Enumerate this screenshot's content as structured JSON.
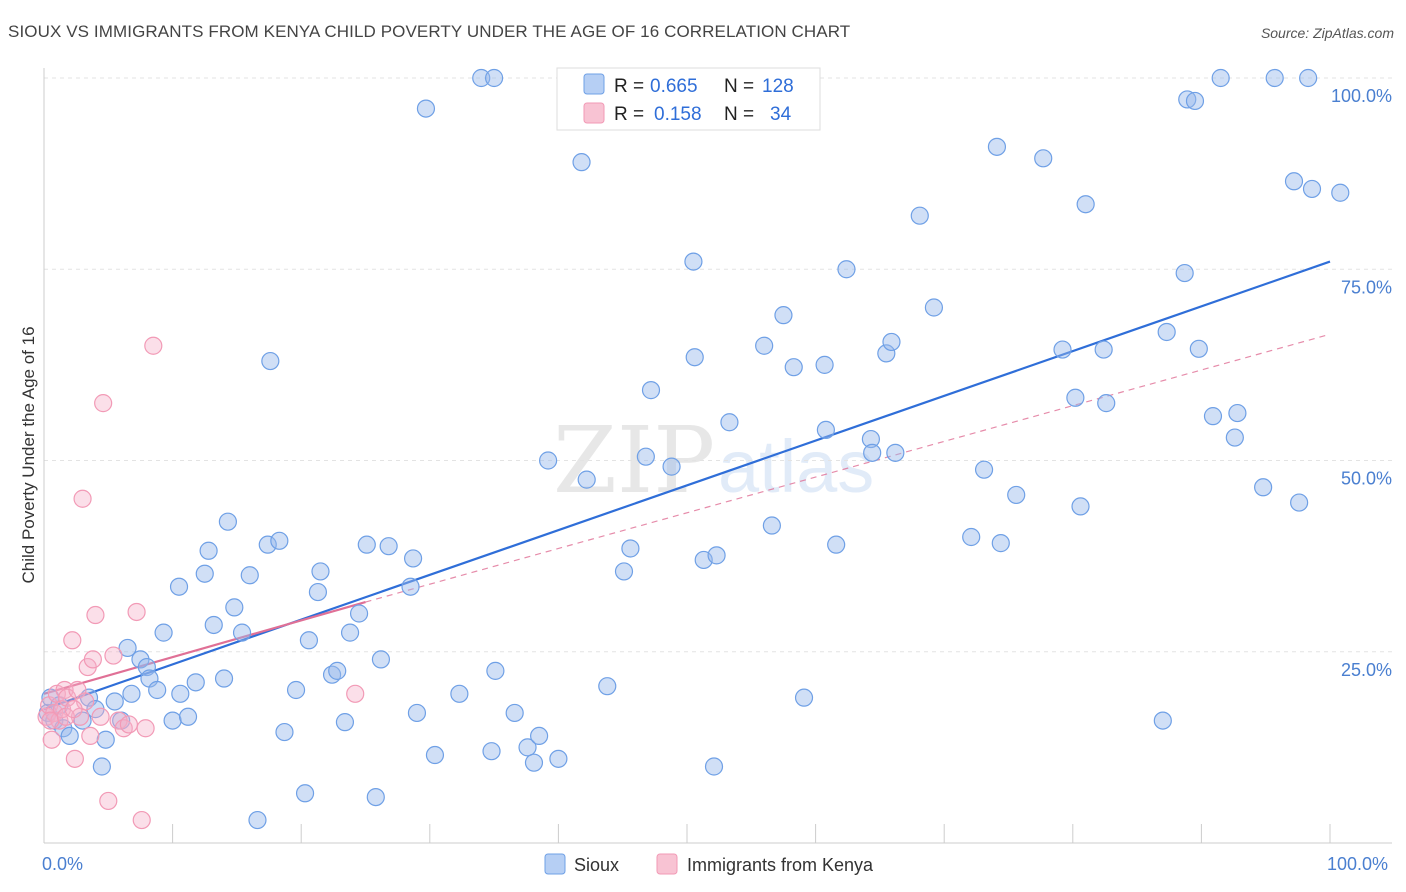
{
  "title": "SIOUX VS IMMIGRANTS FROM KENYA CHILD POVERTY UNDER THE AGE OF 16 CORRELATION CHART",
  "source": "Source: ZipAtlas.com",
  "watermark": {
    "zip": "ZIP",
    "atlas": "atlas"
  },
  "colors": {
    "sioux": "#6fa0e6",
    "kenya": "#f29ab6",
    "sioux_line": "#2f6ed8",
    "kenya_line": "#e07096"
  },
  "legend": {
    "rows": [
      {
        "r_label": "R =",
        "r_value": "0.665",
        "n_label": "N =",
        "n_value": "128"
      },
      {
        "r_label": "R =",
        "r_value": "0.158",
        "n_label": "N =",
        "n_value": "34"
      }
    ]
  },
  "chart_data": {
    "type": "scatter",
    "title": "SIOUX VS IMMIGRANTS FROM KENYA CHILD POVERTY UNDER THE AGE OF 16 CORRELATION CHART",
    "xlabel": "",
    "ylabel": "Child Poverty Under the Age of 16",
    "xlim": [
      0,
      100
    ],
    "ylim": [
      0,
      100
    ],
    "x_tick_labels": [
      "0.0%",
      "100.0%"
    ],
    "y_ticks": [
      25,
      50,
      75,
      100
    ],
    "y_tick_labels": [
      "25.0%",
      "50.0%",
      "75.0%",
      "100.0%"
    ],
    "grid": true,
    "legend_position": "top-center",
    "series": [
      {
        "name": "Sioux",
        "trend": {
          "x": [
            0,
            100
          ],
          "y": [
            17.5,
            76.0
          ]
        },
        "points": [
          [
            0.3,
            17
          ],
          [
            0.5,
            19
          ],
          [
            0.8,
            16
          ],
          [
            1.2,
            18
          ],
          [
            1.5,
            15
          ],
          [
            2,
            14
          ],
          [
            3,
            16
          ],
          [
            3.5,
            19
          ],
          [
            4,
            17.5
          ],
          [
            4.5,
            10
          ],
          [
            4.8,
            13.5
          ],
          [
            5.5,
            18.5
          ],
          [
            6,
            16
          ],
          [
            6.5,
            25.5
          ],
          [
            6.8,
            19.5
          ],
          [
            7.5,
            24
          ],
          [
            8,
            23
          ],
          [
            8.2,
            21.5
          ],
          [
            8.8,
            20
          ],
          [
            9.3,
            27.5
          ],
          [
            10,
            16
          ],
          [
            10.5,
            33.5
          ],
          [
            10.6,
            19.5
          ],
          [
            11.2,
            16.5
          ],
          [
            11.8,
            21
          ],
          [
            12.5,
            35.2
          ],
          [
            12.8,
            38.2
          ],
          [
            13.2,
            28.5
          ],
          [
            14,
            21.5
          ],
          [
            14.3,
            42
          ],
          [
            14.8,
            30.8
          ],
          [
            15.4,
            27.5
          ],
          [
            16,
            35
          ],
          [
            16.6,
            3
          ],
          [
            17.4,
            39
          ],
          [
            17.6,
            63
          ],
          [
            18.3,
            39.5
          ],
          [
            18.7,
            14.5
          ],
          [
            19.6,
            20
          ],
          [
            20.3,
            6.5
          ],
          [
            20.6,
            26.5
          ],
          [
            21.3,
            32.8
          ],
          [
            21.5,
            35.5
          ],
          [
            22.4,
            22
          ],
          [
            22.8,
            22.5
          ],
          [
            23.4,
            15.8
          ],
          [
            23.8,
            27.5
          ],
          [
            24.5,
            30
          ],
          [
            25.1,
            39
          ],
          [
            25.8,
            6
          ],
          [
            26.2,
            24
          ],
          [
            26.8,
            38.8
          ],
          [
            28.5,
            33.5
          ],
          [
            28.7,
            37.2
          ],
          [
            29,
            17
          ],
          [
            29.7,
            96
          ],
          [
            30.4,
            11.5
          ],
          [
            32.3,
            19.5
          ],
          [
            34,
            100
          ],
          [
            35,
            100
          ],
          [
            35.1,
            22.5
          ],
          [
            34.8,
            12
          ],
          [
            36.6,
            17
          ],
          [
            37.6,
            12.5
          ],
          [
            38.1,
            10.5
          ],
          [
            38.5,
            14
          ],
          [
            39.2,
            50
          ],
          [
            40,
            11
          ],
          [
            41.5,
            100
          ],
          [
            41.8,
            89
          ],
          [
            42.2,
            47.5
          ],
          [
            43.8,
            20.5
          ],
          [
            45.1,
            35.5
          ],
          [
            45.6,
            38.5
          ],
          [
            46.8,
            50.5
          ],
          [
            47.2,
            59.2
          ],
          [
            48.8,
            49.2
          ],
          [
            50.5,
            76
          ],
          [
            50.6,
            63.5
          ],
          [
            51.3,
            37
          ],
          [
            52.3,
            37.6
          ],
          [
            52.1,
            10
          ],
          [
            53.3,
            55
          ],
          [
            56,
            65
          ],
          [
            56.6,
            41.5
          ],
          [
            57.5,
            69
          ],
          [
            58.3,
            62.2
          ],
          [
            59.1,
            19
          ],
          [
            60.7,
            62.5
          ],
          [
            60.8,
            54
          ],
          [
            61.6,
            39
          ],
          [
            62.4,
            75
          ],
          [
            64.3,
            52.8
          ],
          [
            64.4,
            51
          ],
          [
            65.5,
            64
          ],
          [
            65.9,
            65.5
          ],
          [
            66.2,
            51
          ],
          [
            68.1,
            82
          ],
          [
            69.2,
            70
          ],
          [
            72.1,
            40
          ],
          [
            73.1,
            48.8
          ],
          [
            74.1,
            91
          ],
          [
            74.4,
            39.2
          ],
          [
            75.6,
            45.5
          ],
          [
            77.7,
            89.5
          ],
          [
            79.2,
            64.5
          ],
          [
            80.2,
            58.2
          ],
          [
            80.6,
            44
          ],
          [
            81,
            83.5
          ],
          [
            82.4,
            64.5
          ],
          [
            82.6,
            57.5
          ],
          [
            87.3,
            66.8
          ],
          [
            88.7,
            74.5
          ],
          [
            88.9,
            97.2
          ],
          [
            89.5,
            97
          ],
          [
            89.8,
            64.6
          ],
          [
            90.9,
            55.8
          ],
          [
            91.5,
            100
          ],
          [
            92.6,
            53
          ],
          [
            92.8,
            56.2
          ],
          [
            94.8,
            46.5
          ],
          [
            95.7,
            100
          ],
          [
            97.2,
            86.5
          ],
          [
            97.6,
            44.5
          ],
          [
            98.3,
            100
          ],
          [
            98.6,
            85.5
          ],
          [
            100.8,
            85
          ],
          [
            87,
            16
          ]
        ]
      },
      {
        "name": "Immigrants from Kenya",
        "trend": {
          "x": [
            0,
            25
          ],
          "y": [
            19.5,
            31.5
          ]
        },
        "trend_extension": {
          "x": [
            25,
            100
          ],
          "y": [
            31.5,
            66.5
          ]
        },
        "points": [
          [
            0.2,
            16.5
          ],
          [
            0.4,
            18
          ],
          [
            0.6,
            13.5
          ],
          [
            0.8,
            17
          ],
          [
            1,
            19.5
          ],
          [
            1.2,
            16
          ],
          [
            1.4,
            17.5
          ],
          [
            1.6,
            20
          ],
          [
            1.8,
            19
          ],
          [
            2.2,
            26.5
          ],
          [
            2.4,
            11
          ],
          [
            2.6,
            20
          ],
          [
            2.8,
            16.5
          ],
          [
            3,
            45
          ],
          [
            3.2,
            18.5
          ],
          [
            3.4,
            23
          ],
          [
            3.6,
            14
          ],
          [
            3.8,
            24
          ],
          [
            4,
            29.8
          ],
          [
            4.4,
            16.5
          ],
          [
            4.6,
            57.5
          ],
          [
            5,
            5.5
          ],
          [
            5.4,
            24.5
          ],
          [
            5.8,
            16
          ],
          [
            6.2,
            15
          ],
          [
            6.6,
            15.5
          ],
          [
            7.2,
            30.2
          ],
          [
            7.6,
            3
          ],
          [
            7.9,
            15
          ],
          [
            8.5,
            65
          ],
          [
            24.2,
            19.5
          ],
          [
            0.5,
            16
          ],
          [
            1.7,
            16.5
          ],
          [
            2.3,
            17.5
          ]
        ]
      }
    ]
  },
  "bottom_legend": {
    "sioux": "Sioux",
    "kenya": "Immigrants from Kenya"
  }
}
